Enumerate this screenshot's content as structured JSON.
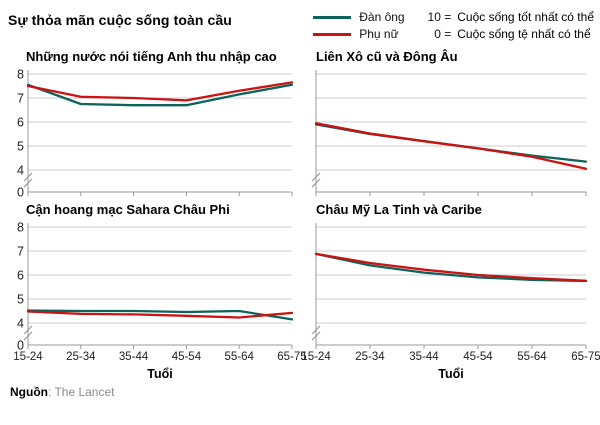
{
  "header": {
    "title": "Sự thỏa mãn cuộc sống toàn cầu",
    "legend": {
      "series": [
        {
          "label": "Đàn ông",
          "color": "#0b635a",
          "scale_prefix": "10 =",
          "scale_text": "Cuộc sống tốt nhất có thể"
        },
        {
          "label": "Phụ nữ",
          "color": "#cc1212",
          "scale_prefix": "0 =",
          "scale_text": "Cuộc sống tệ nhất có thể"
        }
      ]
    }
  },
  "axis": {
    "x_title": "Tuổi",
    "y_ticks": [
      "8",
      "7",
      "6",
      "5",
      "4"
    ],
    "y_zero": "0"
  },
  "chart_data": [
    {
      "type": "line",
      "title": "Những nước nói tiếng Anh thu nhập cao",
      "categories": [
        "15-24",
        "25-34",
        "35-44",
        "45-54",
        "55-64",
        "65-75"
      ],
      "ylim": [
        4,
        8
      ],
      "y_axis_break_to_zero": true,
      "show_y_labels": true,
      "show_x_labels": false,
      "series": [
        {
          "name": "Đàn ông",
          "color": "#0b635a",
          "values": [
            7.55,
            6.75,
            6.7,
            6.7,
            7.15,
            7.55
          ]
        },
        {
          "name": "Phụ nữ",
          "color": "#cc1212",
          "values": [
            7.5,
            7.05,
            7.0,
            6.9,
            7.3,
            7.65
          ]
        }
      ]
    },
    {
      "type": "line",
      "title": "Liên Xô cũ và Đông Âu",
      "categories": [
        "15-24",
        "25-34",
        "35-44",
        "45-54",
        "55-64",
        "65-75"
      ],
      "ylim": [
        4,
        8
      ],
      "y_axis_break_to_zero": true,
      "show_y_labels": false,
      "show_x_labels": false,
      "series": [
        {
          "name": "Đàn ông",
          "color": "#0b635a",
          "values": [
            5.9,
            5.5,
            5.2,
            4.9,
            4.6,
            4.35
          ]
        },
        {
          "name": "Phụ nữ",
          "color": "#cc1212",
          "values": [
            5.95,
            5.52,
            5.2,
            4.9,
            4.55,
            4.05
          ]
        }
      ]
    },
    {
      "type": "line",
      "title": "Cận hoang mạc Sahara Châu Phi",
      "categories": [
        "15-24",
        "25-34",
        "35-44",
        "45-54",
        "55-64",
        "65-75"
      ],
      "ylim": [
        4,
        8
      ],
      "y_axis_break_to_zero": true,
      "show_y_labels": true,
      "show_x_labels": true,
      "series": [
        {
          "name": "Đàn ông",
          "color": "#0b635a",
          "values": [
            4.52,
            4.5,
            4.5,
            4.46,
            4.5,
            4.15
          ]
        },
        {
          "name": "Phụ nữ",
          "color": "#cc1212",
          "values": [
            4.48,
            4.38,
            4.36,
            4.3,
            4.23,
            4.42
          ]
        }
      ]
    },
    {
      "type": "line",
      "title": "Châu Mỹ La Tinh và Caribe",
      "categories": [
        "15-24",
        "25-34",
        "35-44",
        "45-54",
        "55-64",
        "65-75"
      ],
      "ylim": [
        4,
        8
      ],
      "y_axis_break_to_zero": true,
      "show_y_labels": false,
      "show_x_labels": true,
      "series": [
        {
          "name": "Đàn ông",
          "color": "#0b635a",
          "values": [
            6.88,
            6.4,
            6.1,
            5.9,
            5.8,
            5.75
          ]
        },
        {
          "name": "Phụ nữ",
          "color": "#cc1212",
          "values": [
            6.88,
            6.5,
            6.22,
            6.0,
            5.87,
            5.76
          ]
        }
      ]
    }
  ],
  "source": {
    "label": "Nguồn",
    "text": ": The Lancet"
  }
}
